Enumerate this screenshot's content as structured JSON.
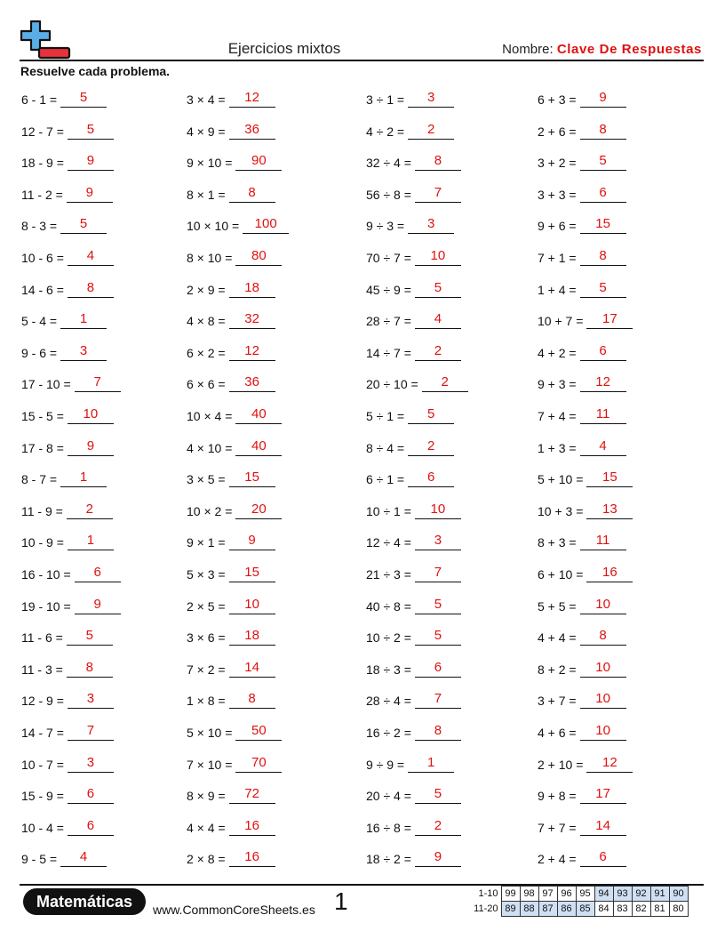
{
  "header": {
    "title": "Ejercicios mixtos",
    "name_label": "Nombre:",
    "name_value": "Clave De Respuestas"
  },
  "instructions": "Resuelve cada problema.",
  "colors": {
    "answer": "#e01010",
    "highlight": "#cfe0f4",
    "logo_blue": "#5aaee8",
    "logo_red": "#e8323a"
  },
  "icons": {
    "logo": "plus-minus-logo"
  },
  "columns": [
    [
      {
        "q": "6 - 1 =",
        "a": "5"
      },
      {
        "q": "12 - 7 =",
        "a": "5"
      },
      {
        "q": "18 - 9 =",
        "a": "9"
      },
      {
        "q": "11 - 2 =",
        "a": "9"
      },
      {
        "q": "8 - 3 =",
        "a": "5"
      },
      {
        "q": "10 - 6 =",
        "a": "4"
      },
      {
        "q": "14 - 6 =",
        "a": "8"
      },
      {
        "q": "5 - 4 =",
        "a": "1"
      },
      {
        "q": "9 - 6 =",
        "a": "3"
      },
      {
        "q": "17 - 10 =",
        "a": "7"
      },
      {
        "q": "15 - 5 =",
        "a": "10"
      },
      {
        "q": "17 - 8 =",
        "a": "9"
      },
      {
        "q": "8 - 7 =",
        "a": "1"
      },
      {
        "q": "11 - 9 =",
        "a": "2"
      },
      {
        "q": "10 - 9 =",
        "a": "1"
      },
      {
        "q": "16 - 10 =",
        "a": "6"
      },
      {
        "q": "19 - 10 =",
        "a": "9"
      },
      {
        "q": "11 - 6 =",
        "a": "5"
      },
      {
        "q": "11 - 3 =",
        "a": "8"
      },
      {
        "q": "12 - 9 =",
        "a": "3"
      },
      {
        "q": "14 - 7 =",
        "a": "7"
      },
      {
        "q": "10 - 7 =",
        "a": "3"
      },
      {
        "q": "15 - 9 =",
        "a": "6"
      },
      {
        "q": "10 - 4 =",
        "a": "6"
      },
      {
        "q": "9 - 5 =",
        "a": "4"
      }
    ],
    [
      {
        "q": "3 × 4 =",
        "a": "12"
      },
      {
        "q": "4 × 9 =",
        "a": "36"
      },
      {
        "q": "9 × 10 =",
        "a": "90"
      },
      {
        "q": "8 × 1 =",
        "a": "8"
      },
      {
        "q": "10 × 10 =",
        "a": "100"
      },
      {
        "q": "8 × 10 =",
        "a": "80"
      },
      {
        "q": "2 × 9 =",
        "a": "18"
      },
      {
        "q": "4 × 8 =",
        "a": "32"
      },
      {
        "q": "6 × 2 =",
        "a": "12"
      },
      {
        "q": "6 × 6 =",
        "a": "36"
      },
      {
        "q": "10 × 4 =",
        "a": "40"
      },
      {
        "q": "4 × 10 =",
        "a": "40"
      },
      {
        "q": "3 × 5 =",
        "a": "15"
      },
      {
        "q": "10 × 2 =",
        "a": "20"
      },
      {
        "q": "9 × 1 =",
        "a": "9"
      },
      {
        "q": "5 × 3 =",
        "a": "15"
      },
      {
        "q": "2 × 5 =",
        "a": "10"
      },
      {
        "q": "3 × 6 =",
        "a": "18"
      },
      {
        "q": "7 × 2 =",
        "a": "14"
      },
      {
        "q": "1 × 8 =",
        "a": "8"
      },
      {
        "q": "5 × 10 =",
        "a": "50"
      },
      {
        "q": "7 × 10 =",
        "a": "70"
      },
      {
        "q": "8 × 9 =",
        "a": "72"
      },
      {
        "q": "4 × 4 =",
        "a": "16"
      },
      {
        "q": "2 × 8 =",
        "a": "16"
      }
    ],
    [
      {
        "q": "3 ÷ 1 =",
        "a": "3"
      },
      {
        "q": "4 ÷ 2 =",
        "a": "2"
      },
      {
        "q": "32 ÷ 4 =",
        "a": "8"
      },
      {
        "q": "56 ÷ 8 =",
        "a": "7"
      },
      {
        "q": "9 ÷ 3 =",
        "a": "3"
      },
      {
        "q": "70 ÷ 7 =",
        "a": "10"
      },
      {
        "q": "45 ÷ 9 =",
        "a": "5"
      },
      {
        "q": "28 ÷ 7 =",
        "a": "4"
      },
      {
        "q": "14 ÷ 7 =",
        "a": "2"
      },
      {
        "q": "20 ÷ 10 =",
        "a": "2"
      },
      {
        "q": "5 ÷ 1 =",
        "a": "5"
      },
      {
        "q": "8 ÷ 4 =",
        "a": "2"
      },
      {
        "q": "6 ÷ 1 =",
        "a": "6"
      },
      {
        "q": "10 ÷ 1 =",
        "a": "10"
      },
      {
        "q": "12 ÷ 4 =",
        "a": "3"
      },
      {
        "q": "21 ÷ 3 =",
        "a": "7"
      },
      {
        "q": "40 ÷ 8 =",
        "a": "5"
      },
      {
        "q": "10 ÷ 2 =",
        "a": "5"
      },
      {
        "q": "18 ÷ 3 =",
        "a": "6"
      },
      {
        "q": "28 ÷ 4 =",
        "a": "7"
      },
      {
        "q": "16 ÷ 2 =",
        "a": "8"
      },
      {
        "q": "9 ÷ 9 =",
        "a": "1"
      },
      {
        "q": "20 ÷ 4 =",
        "a": "5"
      },
      {
        "q": "16 ÷ 8 =",
        "a": "2"
      },
      {
        "q": "18 ÷ 2 =",
        "a": "9"
      }
    ],
    [
      {
        "q": "6 + 3 =",
        "a": "9"
      },
      {
        "q": "2 + 6 =",
        "a": "8"
      },
      {
        "q": "3 + 2 =",
        "a": "5"
      },
      {
        "q": "3 + 3 =",
        "a": "6"
      },
      {
        "q": "9 + 6 =",
        "a": "15"
      },
      {
        "q": "7 + 1 =",
        "a": "8"
      },
      {
        "q": "1 + 4 =",
        "a": "5"
      },
      {
        "q": "10 + 7 =",
        "a": "17"
      },
      {
        "q": "4 + 2 =",
        "a": "6"
      },
      {
        "q": "9 + 3 =",
        "a": "12"
      },
      {
        "q": "7 + 4 =",
        "a": "11"
      },
      {
        "q": "1 + 3 =",
        "a": "4"
      },
      {
        "q": "5 + 10 =",
        "a": "15"
      },
      {
        "q": "10 + 3 =",
        "a": "13"
      },
      {
        "q": "8 + 3 =",
        "a": "11"
      },
      {
        "q": "6 + 10 =",
        "a": "16"
      },
      {
        "q": "5 + 5 =",
        "a": "10"
      },
      {
        "q": "4 + 4 =",
        "a": "8"
      },
      {
        "q": "8 + 2 =",
        "a": "10"
      },
      {
        "q": "3 + 7 =",
        "a": "10"
      },
      {
        "q": "4 + 6 =",
        "a": "10"
      },
      {
        "q": "2 + 10 =",
        "a": "12"
      },
      {
        "q": "9 + 8 =",
        "a": "17"
      },
      {
        "q": "7 + 7 =",
        "a": "14"
      },
      {
        "q": "2 + 4 =",
        "a": "6"
      }
    ]
  ],
  "footer": {
    "brand": "Matemáticas",
    "website": "www.CommonCoreSheets.es",
    "page_number": "1",
    "score_rows": [
      {
        "label": "1-10",
        "cells": [
          "99",
          "98",
          "97",
          "96",
          "95",
          "94",
          "93",
          "92",
          "91",
          "90"
        ]
      },
      {
        "label": "11-20",
        "cells": [
          "89",
          "88",
          "87",
          "86",
          "85",
          "84",
          "83",
          "82",
          "81",
          "80"
        ]
      }
    ]
  }
}
